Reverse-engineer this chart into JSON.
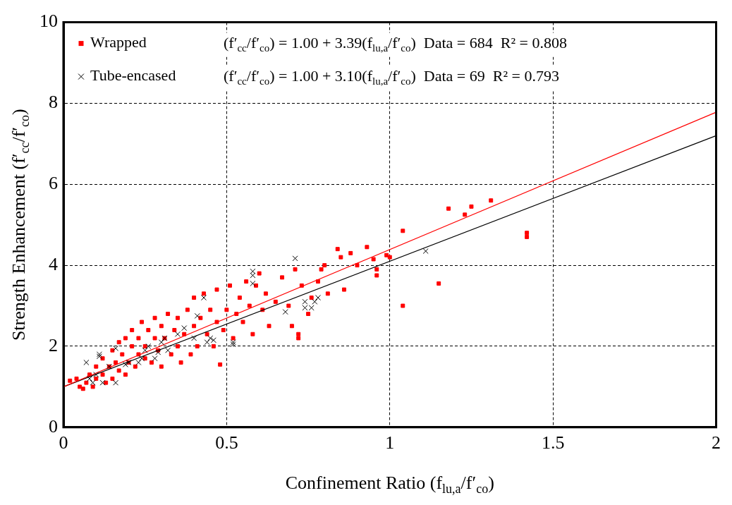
{
  "chart_data": {
    "type": "scatter",
    "xlabel": "Confinement Ratio (f$_{lu,a}$/f′$_{co}$)",
    "ylabel": "Strength Enhancement (f′$_{cc}$/f′$_{co}$)",
    "xlim": [
      0,
      2
    ],
    "xticks": [
      0,
      0.5,
      1,
      1.5,
      2
    ],
    "ylim": [
      0,
      10
    ],
    "yticks": [
      0,
      2,
      4,
      6,
      8,
      10
    ],
    "grid": true,
    "legend": "top left",
    "annotations": [
      "(f′$_{cc}$/f′$_{co}$) = 1.00 + 3.39(f$_{lu,a}$/f′$_{co}$)  Data = 684  R² = 0.808",
      "(f′$_{cc}$/f′$_{co}$) = 1.00 + 3.10(f$_{lu,a}$/f′$_{co}$)  Data = 69  R² = 0.793"
    ],
    "series": [
      {
        "name": "Wrapped",
        "type": "scatter",
        "marker": "square",
        "color": "#ff0000",
        "x": [
          0.02,
          0.04,
          0.05,
          0.06,
          0.07,
          0.08,
          0.09,
          0.1,
          0.1,
          0.12,
          0.12,
          0.13,
          0.14,
          0.15,
          0.15,
          0.16,
          0.17,
          0.17,
          0.18,
          0.19,
          0.19,
          0.2,
          0.21,
          0.21,
          0.22,
          0.23,
          0.23,
          0.24,
          0.25,
          0.25,
          0.26,
          0.27,
          0.28,
          0.28,
          0.29,
          0.3,
          0.3,
          0.31,
          0.32,
          0.33,
          0.34,
          0.35,
          0.35,
          0.36,
          0.37,
          0.38,
          0.39,
          0.4,
          0.4,
          0.41,
          0.42,
          0.43,
          0.44,
          0.45,
          0.46,
          0.47,
          0.47,
          0.48,
          0.49,
          0.5,
          0.51,
          0.52,
          0.53,
          0.54,
          0.55,
          0.56,
          0.57,
          0.58,
          0.59,
          0.6,
          0.61,
          0.62,
          0.63,
          0.65,
          0.67,
          0.69,
          0.7,
          0.71,
          0.72,
          0.72,
          0.73,
          0.75,
          0.76,
          0.78,
          0.79,
          0.8,
          0.81,
          0.84,
          0.85,
          0.86,
          0.88,
          0.9,
          0.93,
          0.95,
          0.96,
          0.96,
          0.99,
          1.0,
          1.04,
          1.04,
          1.15,
          1.18,
          1.23,
          1.25,
          1.31,
          1.42,
          1.42
        ],
        "values": [
          1.15,
          1.2,
          1.0,
          0.95,
          1.1,
          1.3,
          1.0,
          1.2,
          1.5,
          1.3,
          1.7,
          1.1,
          1.5,
          1.9,
          1.2,
          1.6,
          2.1,
          1.4,
          1.8,
          2.2,
          1.3,
          1.6,
          2.0,
          2.4,
          1.5,
          1.8,
          2.2,
          2.6,
          1.7,
          2.0,
          2.4,
          1.6,
          2.2,
          2.7,
          1.9,
          2.5,
          1.5,
          2.2,
          2.8,
          1.8,
          2.4,
          2.0,
          2.7,
          1.6,
          2.3,
          2.9,
          1.8,
          2.5,
          3.2,
          2.0,
          2.7,
          3.3,
          2.3,
          2.9,
          2.0,
          2.6,
          3.4,
          1.55,
          2.4,
          2.9,
          3.5,
          2.2,
          2.8,
          3.2,
          2.6,
          3.6,
          3.0,
          2.3,
          3.5,
          3.8,
          2.9,
          3.3,
          2.5,
          3.1,
          3.7,
          3.0,
          2.5,
          3.9,
          2.3,
          2.2,
          3.5,
          2.8,
          3.2,
          3.6,
          3.9,
          4.0,
          3.3,
          4.4,
          4.2,
          3.4,
          4.3,
          4.0,
          4.45,
          4.15,
          3.9,
          3.75,
          4.25,
          4.2,
          4.85,
          3.0,
          3.55,
          5.4,
          5.25,
          5.45,
          5.6,
          4.8,
          4.7
        ]
      },
      {
        "name": "Tube-encased",
        "type": "scatter",
        "marker": "cross",
        "color": "#000000",
        "x": [
          0.07,
          0.08,
          0.09,
          0.1,
          0.11,
          0.11,
          0.12,
          0.14,
          0.16,
          0.16,
          0.19,
          0.2,
          0.23,
          0.24,
          0.25,
          0.26,
          0.28,
          0.29,
          0.3,
          0.31,
          0.32,
          0.35,
          0.37,
          0.4,
          0.41,
          0.43,
          0.44,
          0.45,
          0.46,
          0.52,
          0.52,
          0.58,
          0.58,
          0.58,
          0.68,
          0.71,
          0.74,
          0.74,
          0.76,
          0.77,
          0.78,
          1.11
        ],
        "values": [
          1.6,
          1.2,
          1.1,
          1.3,
          1.75,
          1.8,
          1.1,
          1.5,
          1.1,
          1.95,
          1.55,
          1.6,
          1.6,
          1.7,
          1.9,
          2.0,
          1.7,
          1.85,
          2.1,
          2.2,
          1.9,
          2.3,
          2.45,
          2.2,
          2.75,
          3.2,
          2.1,
          2.2,
          2.15,
          2.1,
          2.05,
          3.75,
          3.85,
          3.55,
          2.85,
          4.17,
          3.1,
          2.95,
          2.95,
          3.1,
          3.2,
          4.35
        ]
      },
      {
        "type": "line",
        "color": "#ff0000",
        "x": [
          0,
          2
        ],
        "values": [
          1.0,
          7.78
        ]
      },
      {
        "type": "line",
        "color": "#000000",
        "x": [
          0,
          2
        ],
        "values": [
          1.0,
          7.2
        ]
      }
    ]
  }
}
